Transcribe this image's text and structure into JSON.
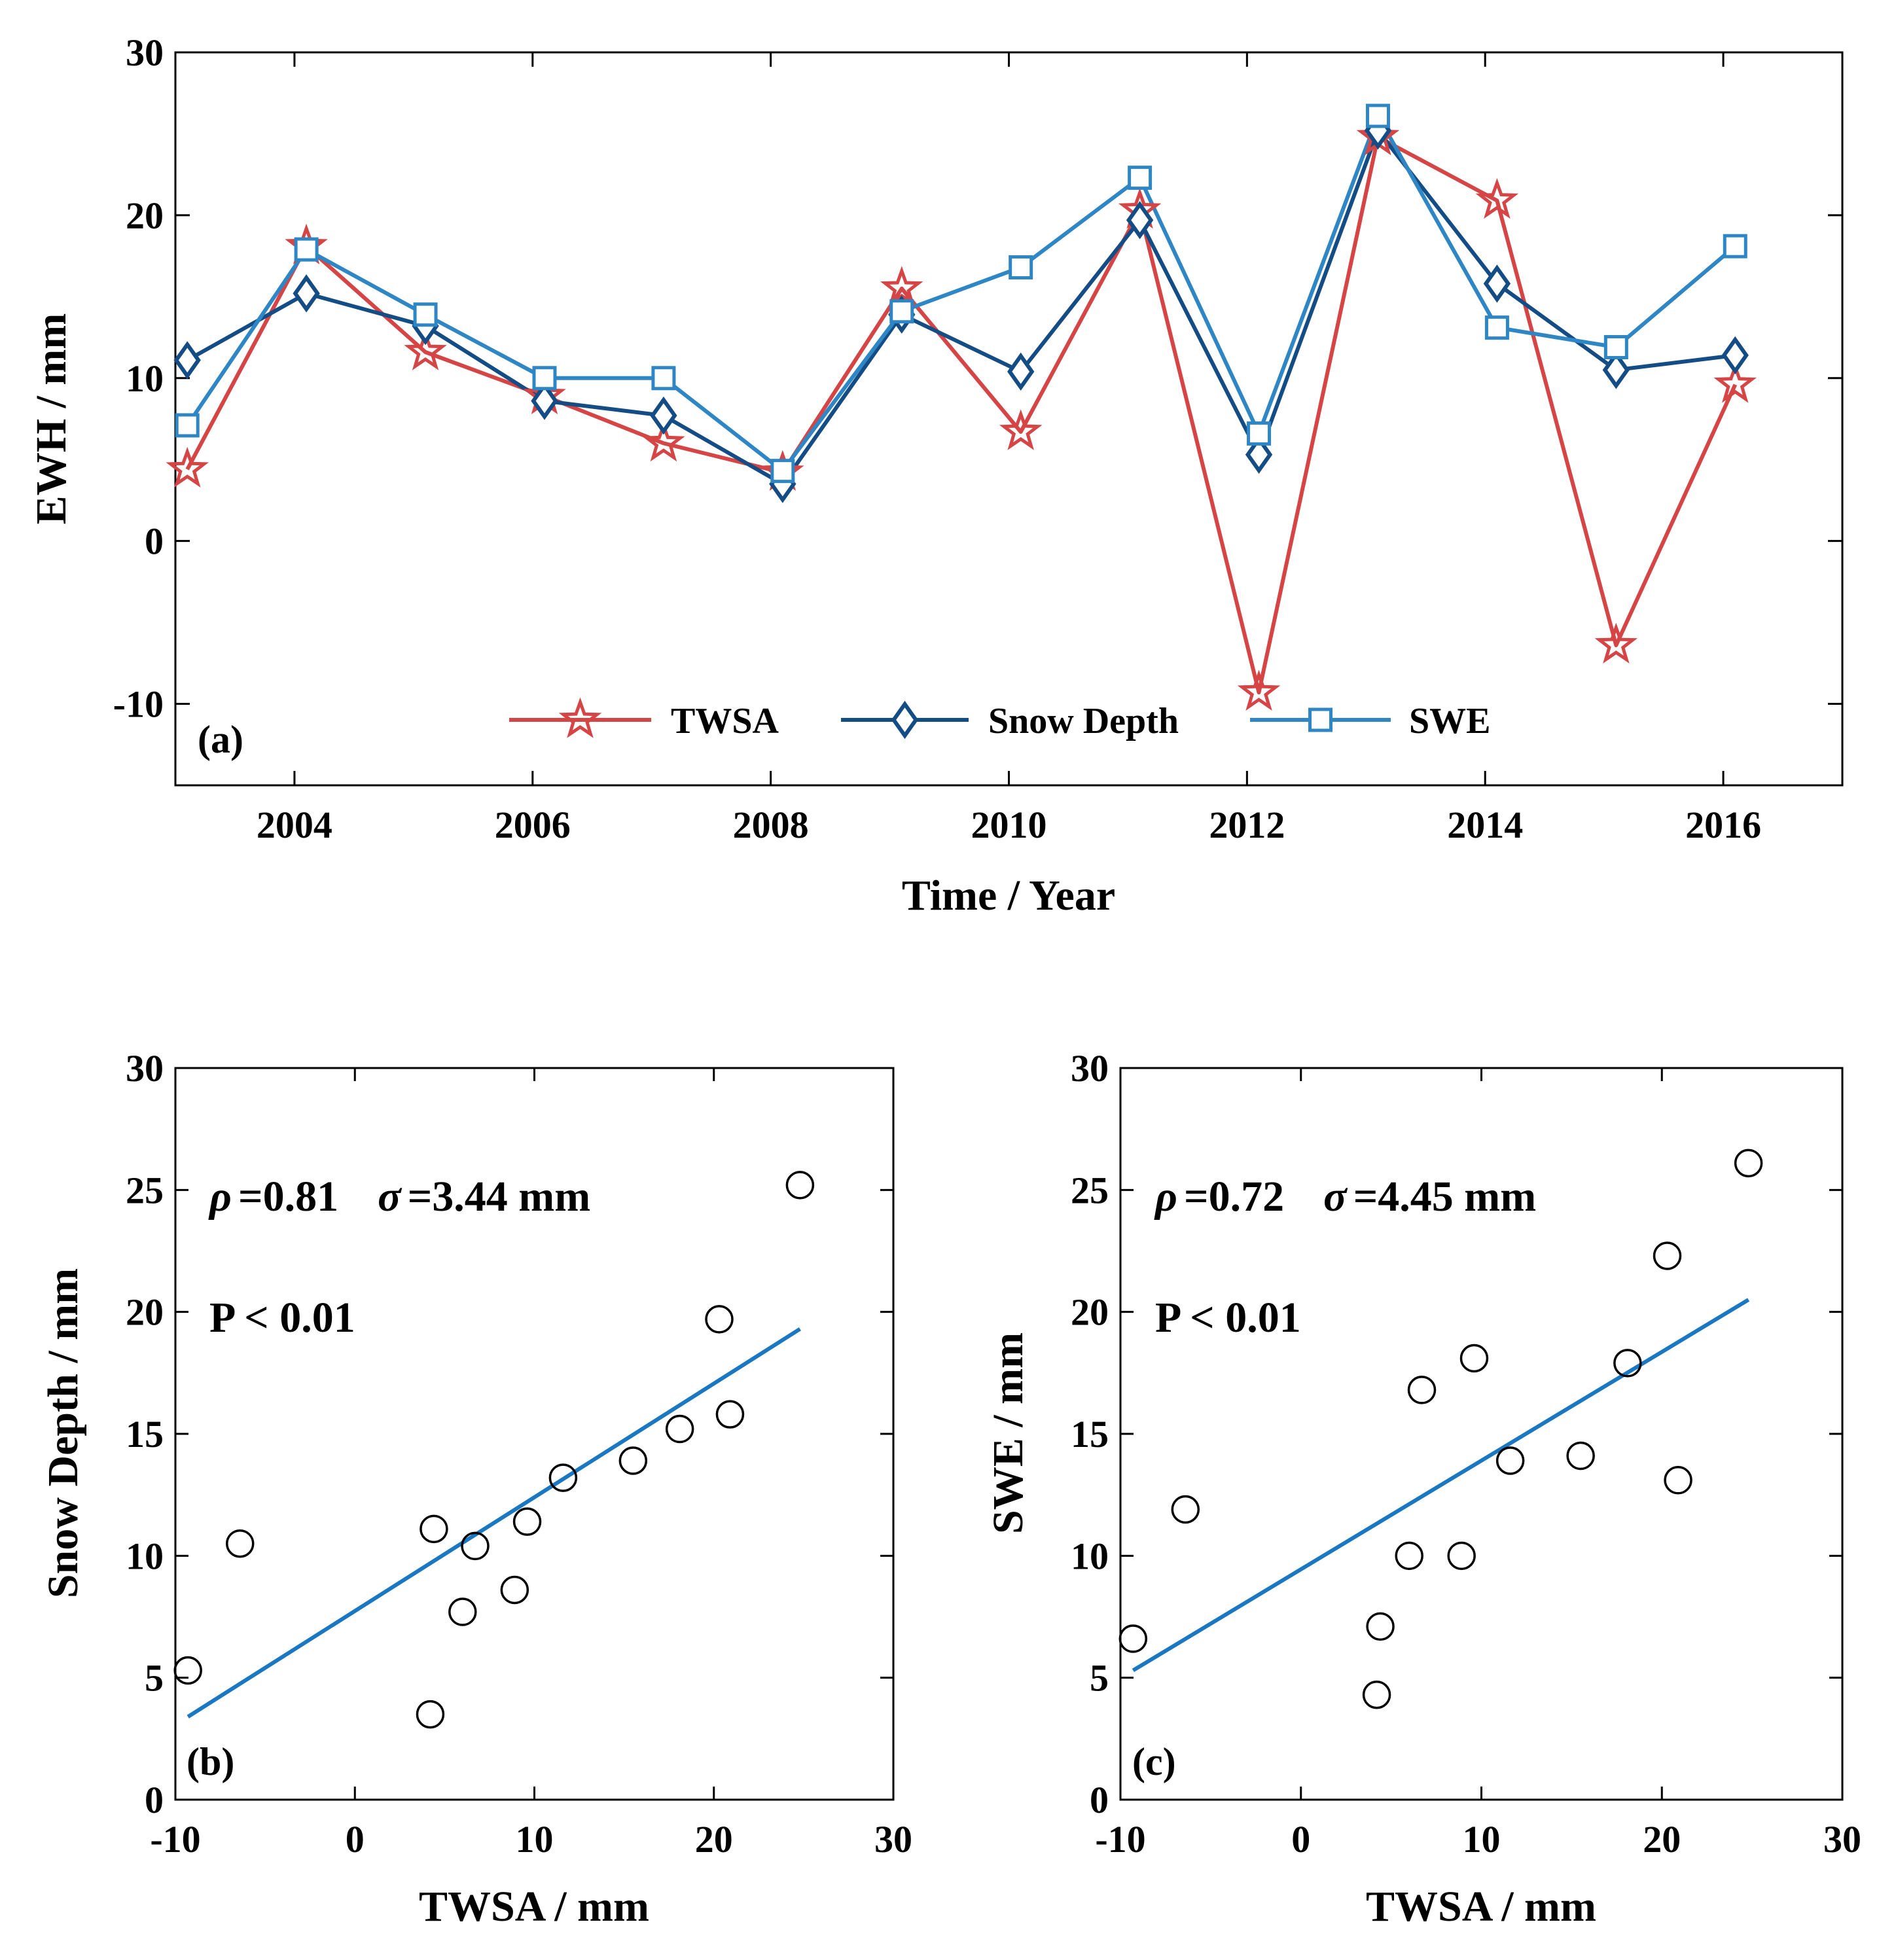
{
  "colors": {
    "twsa": "#d64545",
    "snow_depth": "#144d85",
    "swe": "#2f86c5",
    "fit": "#1a78c2",
    "axis": "#000000"
  },
  "chart_data": [
    {
      "type": "line",
      "panel_label": "(a)",
      "xlabel": "Time / Year",
      "ylabel": "EWH / mm",
      "xlim": [
        2003.0,
        2017.0
      ],
      "ylim": [
        -15,
        30
      ],
      "xticks": [
        2004,
        2006,
        2008,
        2010,
        2012,
        2014,
        2016
      ],
      "xtick_labels": [
        "2004",
        "2006",
        "2008",
        "2010",
        "2012",
        "2014",
        "2016"
      ],
      "yticks": [
        -10,
        0,
        10,
        20,
        30
      ],
      "ytick_labels": [
        "-10",
        "0",
        "10",
        "20",
        "30"
      ],
      "x": [
        2003.1,
        2004.1,
        2005.1,
        2006.1,
        2007.1,
        2008.1,
        2009.1,
        2010.1,
        2011.1,
        2012.1,
        2013.1,
        2014.1,
        2015.1,
        2016.1
      ],
      "series": [
        {
          "name": "TWSA",
          "marker": "star",
          "values": [
            4.4,
            18.1,
            11.6,
            8.9,
            6.0,
            4.2,
            15.5,
            6.7,
            20.3,
            -9.3,
            24.8,
            20.9,
            -6.4,
            9.6
          ]
        },
        {
          "name": "Snow Depth",
          "marker": "diamond",
          "values": [
            11.1,
            15.2,
            13.2,
            8.6,
            7.7,
            3.5,
            13.9,
            10.4,
            19.7,
            5.3,
            25.2,
            15.8,
            10.5,
            11.4
          ]
        },
        {
          "name": "SWE",
          "marker": "square",
          "values": [
            7.1,
            17.9,
            13.9,
            10.0,
            10.0,
            4.3,
            14.1,
            16.8,
            22.3,
            6.6,
            26.1,
            13.1,
            11.9,
            18.1
          ]
        }
      ],
      "legend": [
        "TWSA",
        "Snow Depth",
        "SWE"
      ],
      "legend_position": "bottom-center"
    },
    {
      "type": "scatter",
      "panel_label": "(b)",
      "xlabel": "TWSA / mm",
      "ylabel": "Snow Depth / mm",
      "xlim": [
        -10,
        30
      ],
      "ylim": [
        0,
        30
      ],
      "xticks": [
        -10,
        0,
        10,
        20,
        30
      ],
      "xtick_labels": [
        "-10",
        "0",
        "10",
        "20",
        "30"
      ],
      "yticks": [
        0,
        5,
        10,
        15,
        20,
        25,
        30
      ],
      "ytick_labels": [
        "0",
        "5",
        "10",
        "15",
        "20",
        "25",
        "30"
      ],
      "points_x": [
        4.4,
        18.1,
        11.6,
        8.9,
        6.0,
        4.2,
        15.5,
        6.7,
        20.3,
        -9.3,
        24.8,
        20.9,
        -6.4,
        9.6
      ],
      "points_y": [
        11.1,
        15.2,
        13.2,
        8.6,
        7.7,
        3.5,
        13.9,
        10.4,
        19.7,
        5.3,
        25.2,
        15.8,
        10.5,
        11.4
      ],
      "fit_line": {
        "x": [
          -9.3,
          24.8
        ],
        "y": [
          3.4,
          19.3
        ]
      },
      "annotations": {
        "rho_symbol": "ρ",
        "rho_value": "=0.81",
        "sigma_symbol": "σ",
        "sigma_value": "=3.44 mm",
        "p_value": "P < 0.01"
      }
    },
    {
      "type": "scatter",
      "panel_label": "(c)",
      "xlabel": "TWSA / mm",
      "ylabel": "SWE / mm",
      "xlim": [
        -10,
        30
      ],
      "ylim": [
        0,
        30
      ],
      "xticks": [
        -10,
        0,
        10,
        20,
        30
      ],
      "xtick_labels": [
        "-10",
        "0",
        "10",
        "20",
        "30"
      ],
      "yticks": [
        0,
        5,
        10,
        15,
        20,
        25,
        30
      ],
      "ytick_labels": [
        "0",
        "5",
        "10",
        "15",
        "20",
        "25",
        "30"
      ],
      "points_x": [
        4.4,
        18.1,
        11.6,
        8.9,
        6.0,
        4.2,
        15.5,
        6.7,
        20.3,
        -9.3,
        24.8,
        20.9,
        -6.4,
        9.6
      ],
      "points_y": [
        7.1,
        17.9,
        13.9,
        10.0,
        10.0,
        4.3,
        14.1,
        16.8,
        22.3,
        6.6,
        26.1,
        13.1,
        11.9,
        18.1
      ],
      "fit_line": {
        "x": [
          -9.3,
          24.8
        ],
        "y": [
          5.3,
          20.5
        ]
      },
      "annotations": {
        "rho_symbol": "ρ",
        "rho_value": "=0.72",
        "sigma_symbol": "σ",
        "sigma_value": "=4.45 mm",
        "p_value": "P < 0.01"
      }
    }
  ]
}
